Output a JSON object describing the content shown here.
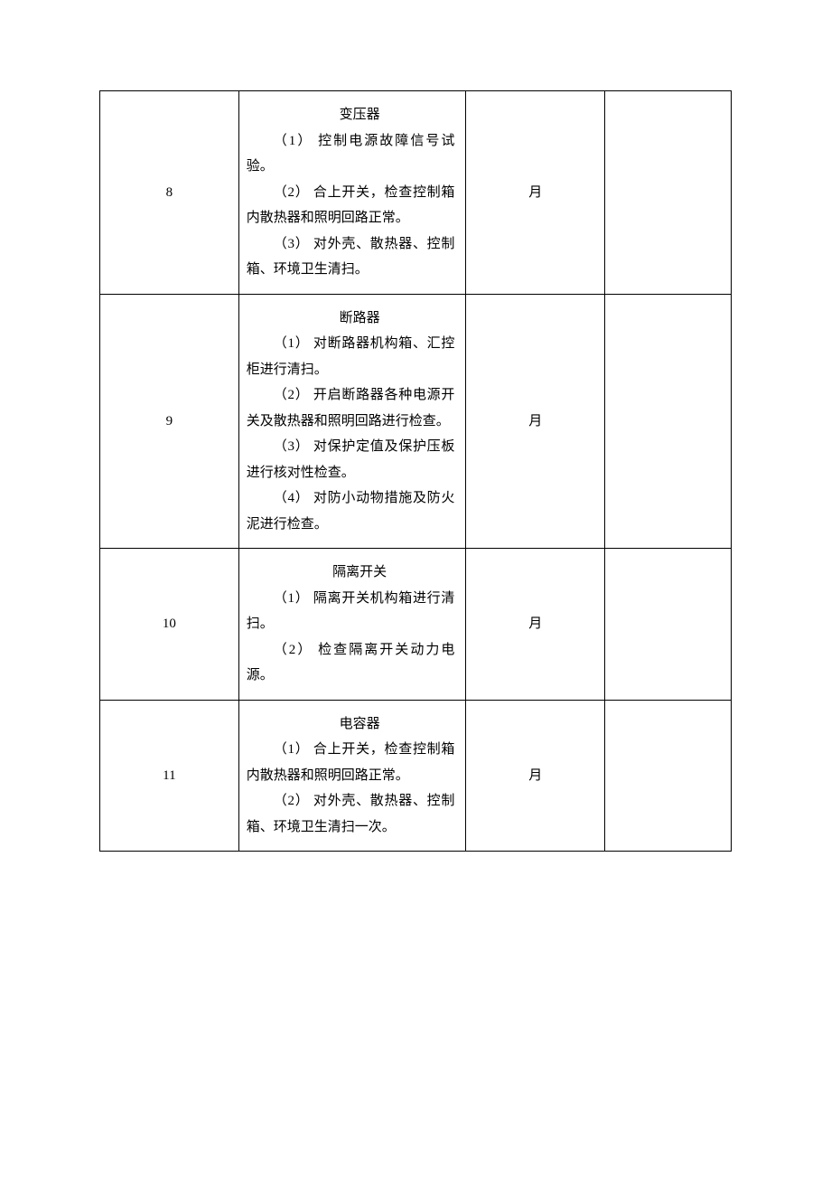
{
  "table": {
    "columns": [
      {
        "key": "num",
        "width": "22%",
        "align": "center"
      },
      {
        "key": "content",
        "width": "36%",
        "align": "left"
      },
      {
        "key": "period",
        "width": "22%",
        "align": "center"
      },
      {
        "key": "empty",
        "width": "20%",
        "align": "left"
      }
    ],
    "border_color": "#000000",
    "background_color": "#ffffff",
    "font_size": 15,
    "line_height": 1.9,
    "text_color": "#000000",
    "rows": [
      {
        "num": "8",
        "title": "变压器",
        "items": [
          "（1） 控制电源故障信号试验。",
          "（2） 合上开关，检查控制箱内散热器和照明回路正常。",
          "（3） 对外壳、散热器、控制箱、环境卫生清扫。"
        ],
        "period": "月",
        "empty": ""
      },
      {
        "num": "9",
        "title": "断路器",
        "items": [
          "（1） 对断路器机构箱、汇控柜进行清扫。",
          "（2） 开启断路器各种电源开关及散热器和照明回路进行检查。",
          "（3） 对保护定值及保护压板进行核对性检查。",
          "（4） 对防小动物措施及防火泥进行检查。"
        ],
        "period": "月",
        "empty": ""
      },
      {
        "num": "10",
        "title": "隔离开关",
        "items": [
          "（1） 隔离开关机构箱进行清扫。",
          "（2） 检查隔离开关动力电源。"
        ],
        "period": "月",
        "empty": ""
      },
      {
        "num": "11",
        "title": "电容器",
        "items": [
          "（1） 合上开关，检查控制箱内散热器和照明回路正常。",
          "（2） 对外壳、散热器、控制箱、环境卫生清扫一次。"
        ],
        "period": "月",
        "empty": ""
      }
    ]
  },
  "watermark": {
    "text": "",
    "color": "#dddddd",
    "font_size": 38
  }
}
